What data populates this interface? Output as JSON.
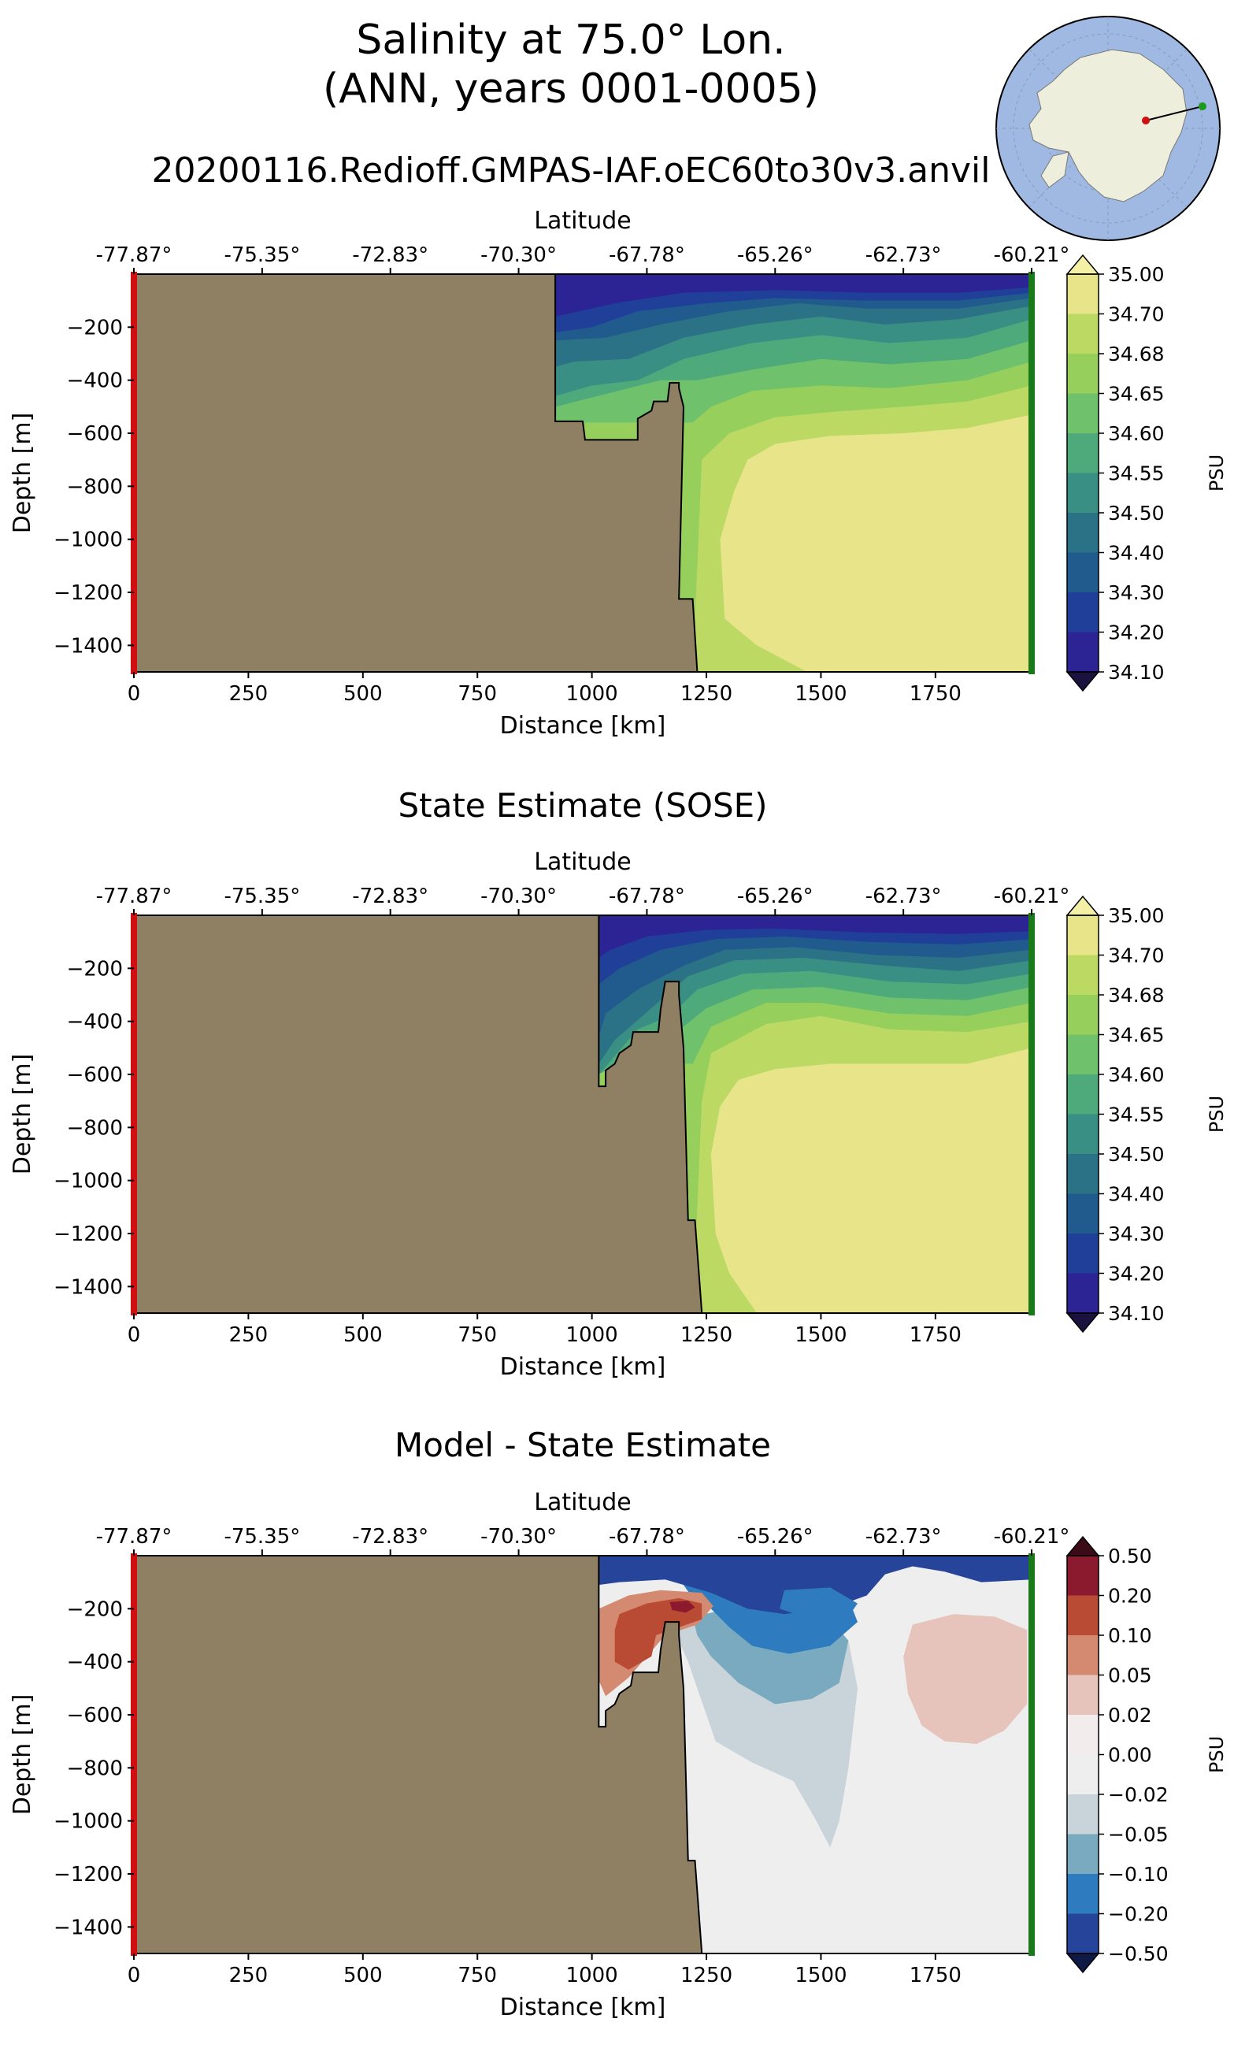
{
  "figure": {
    "title_line1": "Salinity at 75.0° Lon.",
    "title_line2": "(ANN, years 0001-0005)",
    "run_name": "20200116.Redioff.GMPAS-IAF.oEC60to30v3.anvil"
  },
  "colors": {
    "land": "#8f7f63",
    "start_marker": "#d01010",
    "end_marker": "#1a7a1a",
    "ocean_map": "#9fb9e2",
    "antarctica_map": "#eeeedd"
  },
  "inset_map": {
    "description_icon": "antarctica-transect-locator-map",
    "transect_start_marker": "red-dot",
    "transect_end_marker": "green-dot"
  },
  "chart_data": [
    {
      "type": "contourf",
      "panel_title": "",
      "xlabel": "Distance [km]",
      "ylabel": "Depth [m]",
      "top_axis_label": "Latitude",
      "xlim": [
        0,
        1960
      ],
      "ylim": [
        -1500,
        0
      ],
      "xticks": [
        0,
        250,
        500,
        750,
        1000,
        1250,
        1500,
        1750
      ],
      "yticks": [
        -200,
        -400,
        -600,
        -800,
        -1000,
        -1200,
        -1400
      ],
      "lat_ticks": [
        "-77.87°",
        "-75.35°",
        "-72.83°",
        "-70.30°",
        "-67.78°",
        "-65.26°",
        "-62.73°",
        "-60.21°"
      ],
      "colorbar_label": "PSU",
      "colorbar_ticks": [
        "35.00",
        "34.70",
        "34.68",
        "34.65",
        "34.60",
        "34.55",
        "34.50",
        "34.40",
        "34.30",
        "34.20",
        "34.10"
      ],
      "colorbar_colors": [
        "#e8e48a",
        "#bcd964",
        "#97cf5c",
        "#6fc16c",
        "#4ea97b",
        "#3a8f85",
        "#2c7286",
        "#215b8d",
        "#1f3f99",
        "#2c2395"
      ],
      "bathymetry_km_m": [
        [
          920,
          0
        ],
        [
          920,
          -555
        ],
        [
          980,
          -555
        ],
        [
          985,
          -625
        ],
        [
          1100,
          -625
        ],
        [
          1100,
          -545
        ],
        [
          1130,
          -515
        ],
        [
          1135,
          -480
        ],
        [
          1165,
          -480
        ],
        [
          1170,
          -410
        ],
        [
          1190,
          -410
        ],
        [
          1190,
          -430
        ],
        [
          1200,
          -500
        ],
        [
          1190,
          -1225
        ],
        [
          1220,
          -1225
        ],
        [
          1230,
          -1500
        ]
      ]
    },
    {
      "type": "contourf",
      "panel_title": "State Estimate (SOSE)",
      "xlabel": "Distance [km]",
      "ylabel": "Depth [m]",
      "top_axis_label": "Latitude",
      "xlim": [
        0,
        1960
      ],
      "ylim": [
        -1500,
        0
      ],
      "xticks": [
        0,
        250,
        500,
        750,
        1000,
        1250,
        1500,
        1750
      ],
      "yticks": [
        -200,
        -400,
        -600,
        -800,
        -1000,
        -1200,
        -1400
      ],
      "lat_ticks": [
        "-77.87°",
        "-75.35°",
        "-72.83°",
        "-70.30°",
        "-67.78°",
        "-65.26°",
        "-62.73°",
        "-60.21°"
      ],
      "colorbar_label": "PSU",
      "colorbar_ticks": [
        "35.00",
        "34.70",
        "34.68",
        "34.65",
        "34.60",
        "34.55",
        "34.50",
        "34.40",
        "34.30",
        "34.20",
        "34.10"
      ],
      "colorbar_colors": [
        "#e8e48a",
        "#bcd964",
        "#97cf5c",
        "#6fc16c",
        "#4ea97b",
        "#3a8f85",
        "#2c7286",
        "#215b8d",
        "#1f3f99",
        "#2c2395"
      ],
      "bathymetry_km_m": [
        [
          1015,
          0
        ],
        [
          1015,
          -645
        ],
        [
          1030,
          -645
        ],
        [
          1030,
          -585
        ],
        [
          1050,
          -560
        ],
        [
          1060,
          -520
        ],
        [
          1085,
          -490
        ],
        [
          1090,
          -440
        ],
        [
          1145,
          -440
        ],
        [
          1150,
          -355
        ],
        [
          1160,
          -250
        ],
        [
          1190,
          -250
        ],
        [
          1190,
          -300
        ],
        [
          1200,
          -500
        ],
        [
          1210,
          -1150
        ],
        [
          1225,
          -1150
        ],
        [
          1240,
          -1500
        ]
      ]
    },
    {
      "type": "contourf",
      "panel_title": "Model - State Estimate",
      "xlabel": "Distance [km]",
      "ylabel": "Depth [m]",
      "top_axis_label": "Latitude",
      "xlim": [
        0,
        1960
      ],
      "ylim": [
        -1500,
        0
      ],
      "xticks": [
        0,
        250,
        500,
        750,
        1000,
        1250,
        1500,
        1750
      ],
      "yticks": [
        -200,
        -400,
        -600,
        -800,
        -1000,
        -1200,
        -1400
      ],
      "lat_ticks": [
        "-77.87°",
        "-75.35°",
        "-72.83°",
        "-70.30°",
        "-67.78°",
        "-65.26°",
        "-62.73°",
        "-60.21°"
      ],
      "colorbar_label": "PSU",
      "colorbar_ticks": [
        "0.50",
        "0.20",
        "0.10",
        "0.05",
        "0.02",
        "0.00",
        "−0.02",
        "−0.05",
        "−0.10",
        "−0.20",
        "−0.50"
      ],
      "colorbar_colors": [
        "#8b1a2e",
        "#b94a33",
        "#d48a70",
        "#e6c4bb",
        "#f2ecec",
        "#eeeeee",
        "#c9d3da",
        "#79aabf",
        "#2e7cbf",
        "#26449a"
      ],
      "bathymetry_km_m": [
        [
          1015,
          0
        ],
        [
          1015,
          -645
        ],
        [
          1030,
          -645
        ],
        [
          1030,
          -585
        ],
        [
          1050,
          -560
        ],
        [
          1060,
          -520
        ],
        [
          1085,
          -490
        ],
        [
          1090,
          -440
        ],
        [
          1145,
          -440
        ],
        [
          1150,
          -355
        ],
        [
          1160,
          -250
        ],
        [
          1190,
          -250
        ],
        [
          1190,
          -300
        ],
        [
          1200,
          -500
        ],
        [
          1210,
          -1150
        ],
        [
          1225,
          -1150
        ],
        [
          1240,
          -1500
        ]
      ]
    }
  ]
}
